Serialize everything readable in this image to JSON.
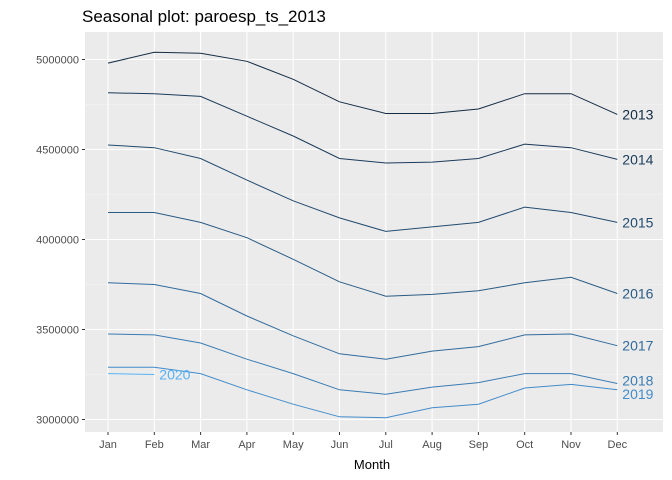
{
  "chart_data": {
    "type": "line",
    "title": "Seasonal plot: paroesp_ts_2013",
    "xlabel": "Month",
    "ylabel": "",
    "categories": [
      "Jan",
      "Feb",
      "Mar",
      "Apr",
      "May",
      "Jun",
      "Jul",
      "Aug",
      "Sep",
      "Oct",
      "Nov",
      "Dec"
    ],
    "y_ticks": [
      3000000,
      3500000,
      4000000,
      4500000,
      5000000
    ],
    "y_tick_labels": [
      "3000000",
      "3500000",
      "4000000",
      "4500000",
      "5000000"
    ],
    "ylim": [
      2950000,
      5090000
    ],
    "grid": true,
    "series": [
      {
        "name": "2013",
        "color": "#132b43",
        "values": [
          4980000,
          5040000,
          5035000,
          4990000,
          4890000,
          4765000,
          4700000,
          4700000,
          4725000,
          4810000,
          4810000,
          4695000
        ]
      },
      {
        "name": "2014",
        "color": "#1a3b5a",
        "values": [
          4815000,
          4810000,
          4795000,
          4685000,
          4575000,
          4450000,
          4425000,
          4430000,
          4450000,
          4530000,
          4510000,
          4445000
        ]
      },
      {
        "name": "2015",
        "color": "#224b6f",
        "values": [
          4525000,
          4510000,
          4450000,
          4330000,
          4215000,
          4120000,
          4045000,
          4070000,
          4095000,
          4180000,
          4150000,
          4095000
        ]
      },
      {
        "name": "2016",
        "color": "#2a5b85",
        "values": [
          4150000,
          4150000,
          4095000,
          4010000,
          3890000,
          3765000,
          3685000,
          3695000,
          3715000,
          3760000,
          3790000,
          3700000
        ]
      },
      {
        "name": "2017",
        "color": "#326b9c",
        "values": [
          3760000,
          3750000,
          3700000,
          3575000,
          3465000,
          3365000,
          3335000,
          3380000,
          3405000,
          3470000,
          3475000,
          3410000
        ]
      },
      {
        "name": "2018",
        "color": "#3a7cb3",
        "values": [
          3475000,
          3470000,
          3425000,
          3335000,
          3255000,
          3165000,
          3140000,
          3180000,
          3205000,
          3255000,
          3255000,
          3200000
        ]
      },
      {
        "name": "2019",
        "color": "#438ccb",
        "values": [
          3290000,
          3290000,
          3255000,
          3165000,
          3085000,
          3015000,
          3010000,
          3065000,
          3085000,
          3175000,
          3195000,
          3165000
        ]
      },
      {
        "name": "2020",
        "color": "#56b1f7",
        "values": [
          3255000,
          3250000,
          null,
          null,
          null,
          null,
          null,
          null,
          null,
          null,
          null,
          null
        ]
      }
    ]
  }
}
